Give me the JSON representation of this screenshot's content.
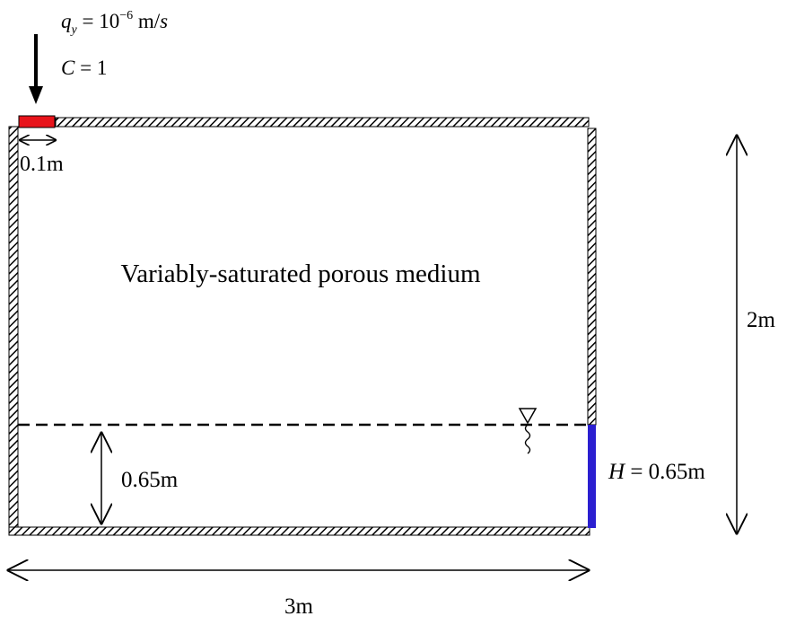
{
  "inflow": {
    "flux_symbol": "q",
    "flux_subscript": "y",
    "flux_equals": " = 10",
    "flux_exponent": "−6",
    "flux_unit_m": " m/",
    "flux_unit_s": "s",
    "conc_symbol": "C",
    "conc_equals": " = 1",
    "segment_color": "#e8141b"
  },
  "labels": {
    "inlet_width": "0.1m",
    "domain": "Variably-saturated porous medium",
    "height": "2m",
    "width": "3m",
    "water_depth": "0.65m",
    "head_symbol": "H",
    "head_value": " = 0.65m"
  },
  "colors": {
    "head_boundary": "#2b1fd0",
    "wall": "#000000"
  },
  "icons": {
    "water_table": "water-table-triangle-icon"
  }
}
